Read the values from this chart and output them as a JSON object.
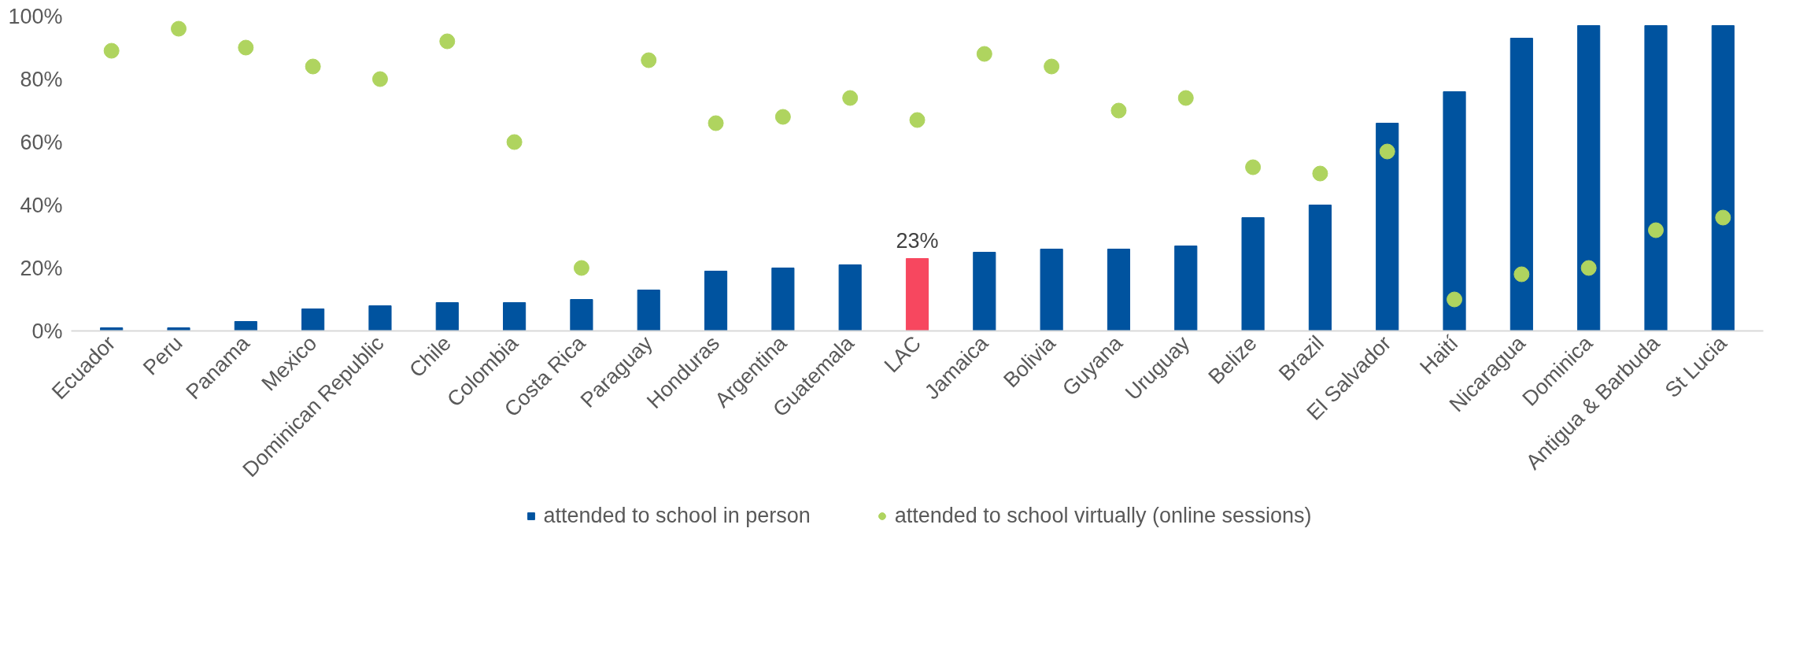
{
  "chart_data": {
    "type": "bar",
    "categories": [
      "Ecuador",
      "Peru",
      "Panama",
      "Mexico",
      "Dominican Republic",
      "Chile",
      "Colombia",
      "Costa Rica",
      "Paraguay",
      "Honduras",
      "Argentina",
      "Guatemala",
      "LAC",
      "Jamaica",
      "Bolivia",
      "Guyana",
      "Uruguay",
      "Belize",
      "Brazil",
      "El Salvador",
      "Haití",
      "Nicaragua",
      "Dominica",
      "Antigua & Barbuda",
      "St Lucia"
    ],
    "series": [
      {
        "name": "attended to school in person",
        "color": "#00539f",
        "colors": [
          null,
          null,
          null,
          null,
          null,
          null,
          null,
          null,
          null,
          null,
          null,
          null,
          "#f7475f",
          null,
          null,
          null,
          null,
          null,
          null,
          null,
          null,
          null,
          null,
          null,
          null
        ],
        "values": [
          1,
          1,
          3,
          7,
          8,
          9,
          9,
          10,
          13,
          19,
          20,
          21,
          23,
          25,
          26,
          26,
          27,
          36,
          40,
          66,
          76,
          93,
          97,
          97,
          97
        ],
        "value_labels": [
          null,
          null,
          null,
          null,
          null,
          null,
          null,
          null,
          null,
          null,
          null,
          null,
          "23%",
          null,
          null,
          null,
          null,
          null,
          null,
          null,
          null,
          null,
          null,
          null,
          null
        ]
      },
      {
        "name": "attended to school virtually (online sessions)",
        "type": "scatter",
        "marker": "circle",
        "color": "#afd45f",
        "values": [
          89,
          96,
          90,
          84,
          80,
          92,
          60,
          20,
          86,
          66,
          68,
          74,
          67,
          88,
          84,
          70,
          74,
          52,
          50,
          57,
          10,
          18,
          20,
          32,
          36
        ]
      }
    ],
    "ylim": [
      0,
      100
    ],
    "yticks": [
      {
        "value": 0,
        "label": "0%"
      },
      {
        "value": 20,
        "label": "20%"
      },
      {
        "value": 40,
        "label": "40%"
      },
      {
        "value": 60,
        "label": "60%"
      },
      {
        "value": 80,
        "label": "80%"
      },
      {
        "value": 100,
        "label": "100%"
      }
    ],
    "grid": false,
    "legend": "bottom"
  }
}
